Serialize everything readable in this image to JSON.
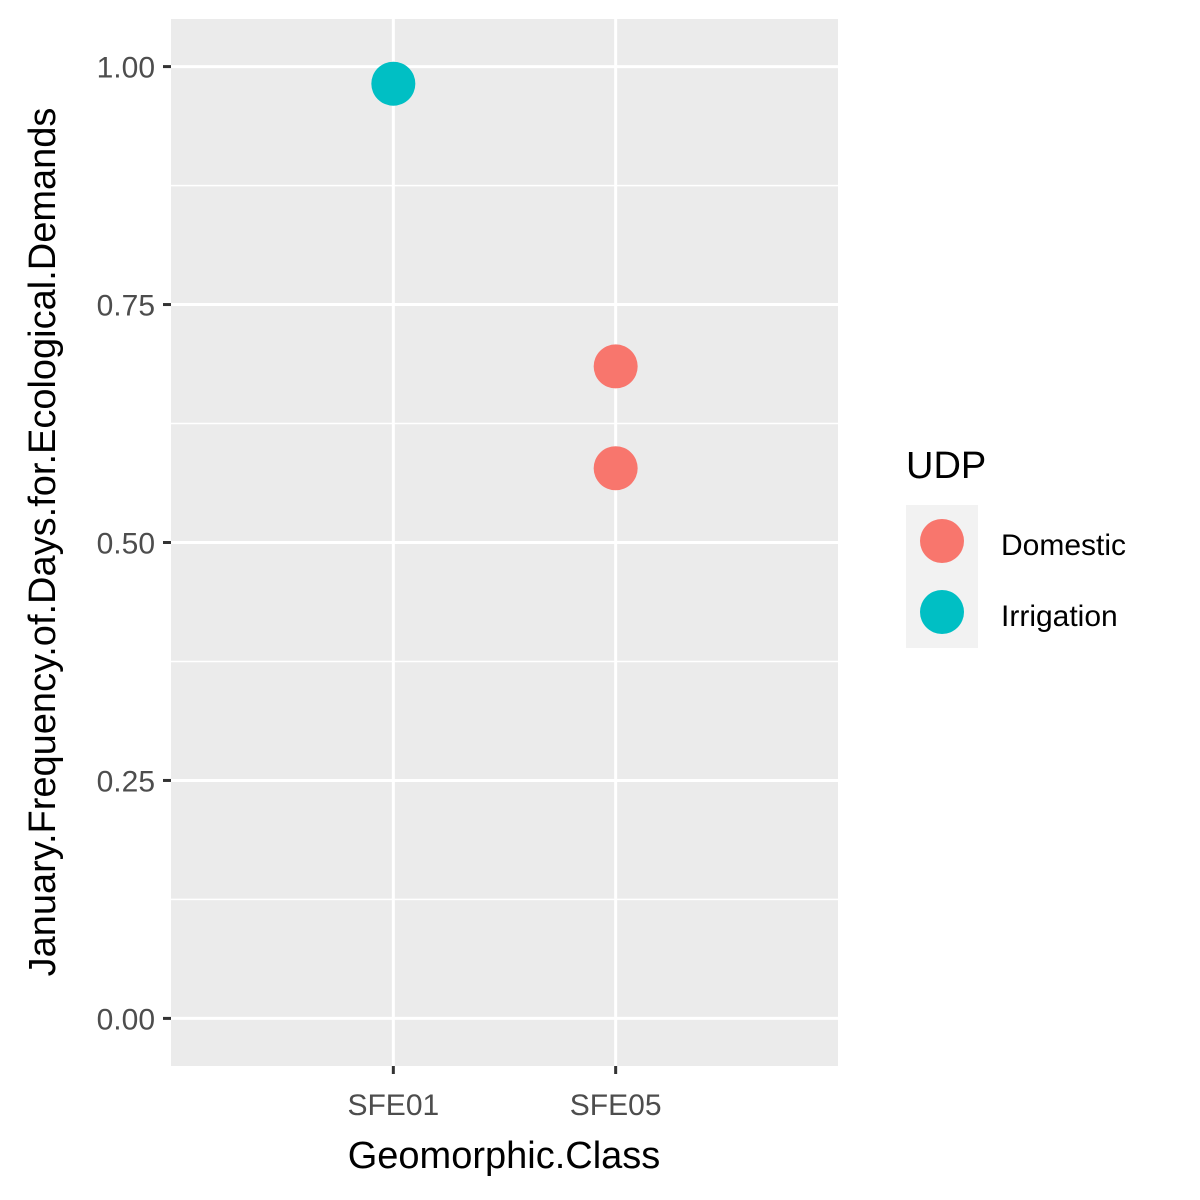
{
  "chart_data": {
    "type": "scatter",
    "xlabel": "Geomorphic.Class",
    "ylabel": "January.Frequency.of.Days.for.Ecological.Demands",
    "categories": [
      "SFE01",
      "SFE05"
    ],
    "ylim": [
      -0.05,
      1.05
    ],
    "y_ticks": [
      0.0,
      0.25,
      0.5,
      0.75,
      1.0
    ],
    "y_tick_labels": [
      "0.00",
      "0.25",
      "0.50",
      "0.75",
      "1.00"
    ],
    "grid": true,
    "legend": {
      "title": "UDP",
      "position": "right"
    },
    "series": [
      {
        "name": "Domestic",
        "color": "#F8766D",
        "points": [
          {
            "x": "SFE05",
            "y": 0.685
          },
          {
            "x": "SFE05",
            "y": 0.578
          }
        ]
      },
      {
        "name": "Irrigation",
        "color": "#00BFC4",
        "points": [
          {
            "x": "SFE01",
            "y": 0.982
          }
        ]
      }
    ],
    "colors": {
      "panel_background": "#EBEBEB",
      "grid": "#FFFFFF",
      "tick": "#333333"
    }
  }
}
